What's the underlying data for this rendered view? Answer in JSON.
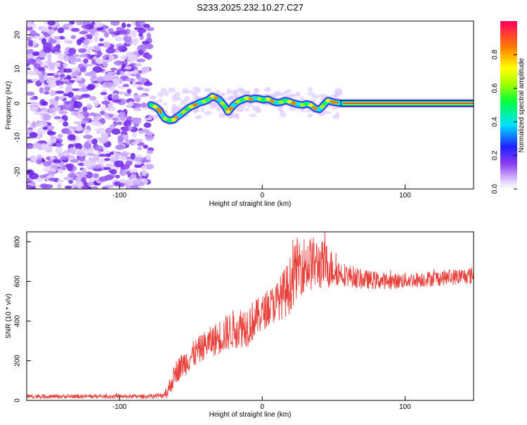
{
  "title": "S233.2025.232.10.27.C27",
  "colors": {
    "snr_line": "#e8403a",
    "axis": "#000000",
    "scatter_noise": "#8a3cf0",
    "trace_core": "#e8203a"
  },
  "chart_data": [
    {
      "type": "heatmap",
      "xlabel": "Height of straight line (km)",
      "ylabel": "Frequency (Hz)",
      "xlim": [
        -165,
        148
      ],
      "ylim": [
        -25,
        24
      ],
      "xticks": [
        -100,
        0,
        100
      ],
      "xtick_labels": [
        "-100",
        "0",
        "100"
      ],
      "yticks": [
        -20,
        -10,
        0,
        10,
        20
      ],
      "ytick_labels": [
        "-20",
        "-10",
        "0",
        "10",
        "20"
      ],
      "noise_region_x": [
        -165,
        -78
      ],
      "trace": {
        "x": [
          -78,
          -75,
          -72,
          -70,
          -68,
          -65,
          -62,
          -60,
          -58,
          -55,
          -52,
          -50,
          -47,
          -44,
          -41,
          -38,
          -35,
          -32,
          -30,
          -28,
          -26,
          -24,
          -22,
          -20,
          -17,
          -14,
          -11,
          -8,
          -5,
          -2,
          1,
          4,
          7,
          10,
          13,
          16,
          19,
          22,
          25,
          28,
          31,
          34,
          37,
          40,
          42,
          44,
          46,
          50,
          55,
          148
        ],
        "y": [
          -0.5,
          -1,
          -2,
          -3.5,
          -4.5,
          -5,
          -4.8,
          -4,
          -3.5,
          -2.5,
          -1.5,
          -1,
          -0.5,
          0.2,
          0.5,
          1,
          2,
          1.5,
          1,
          0,
          -1,
          -2.5,
          -1.5,
          -0.5,
          0.5,
          1,
          1.5,
          1.2,
          1.5,
          1.3,
          1,
          1.2,
          0.6,
          0.2,
          0.3,
          0.8,
          0.5,
          0,
          -0.3,
          -0.5,
          -0.2,
          -0.5,
          -1.5,
          -1.8,
          -1,
          0,
          0.8,
          0.3,
          0,
          0
        ]
      },
      "colorbar": {
        "label": "Normalized spectral amplitude",
        "range": [
          0,
          1
        ],
        "ticks": [
          0,
          0.2,
          0.4,
          0.6,
          0.8
        ],
        "tick_labels": [
          "0.0",
          "0.2",
          "0.4",
          "0.6",
          "0.8"
        ]
      }
    },
    {
      "type": "line",
      "xlabel": "Height of straight line (km)",
      "ylabel": "SNR (10 * v/v)",
      "xlim": [
        -165,
        148
      ],
      "ylim": [
        0,
        850
      ],
      "xticks": [
        -100,
        0,
        100
      ],
      "xtick_labels": [
        "-100",
        "0",
        "100"
      ],
      "yticks": [
        0,
        200,
        400,
        600,
        800
      ],
      "ytick_labels": [
        "0",
        "200",
        "400",
        "600",
        "800"
      ],
      "series": [
        {
          "name": "SNR",
          "x": [
            -165,
            -140,
            -110,
            -80,
            -70,
            -66,
            -60,
            -50,
            -40,
            -30,
            -20,
            -10,
            0,
            10,
            18,
            25,
            35,
            45,
            55,
            70,
            90,
            110,
            130,
            148
          ],
          "y": [
            20,
            20,
            20,
            20,
            25,
            50,
            150,
            220,
            280,
            320,
            360,
            380,
            440,
            500,
            560,
            680,
            690,
            680,
            640,
            610,
            600,
            610,
            620,
            630
          ],
          "jitter": [
            10,
            10,
            10,
            10,
            15,
            40,
            60,
            70,
            70,
            90,
            100,
            110,
            90,
            100,
            140,
            150,
            140,
            120,
            60,
            50,
            40,
            40,
            40,
            45
          ]
        }
      ]
    }
  ]
}
